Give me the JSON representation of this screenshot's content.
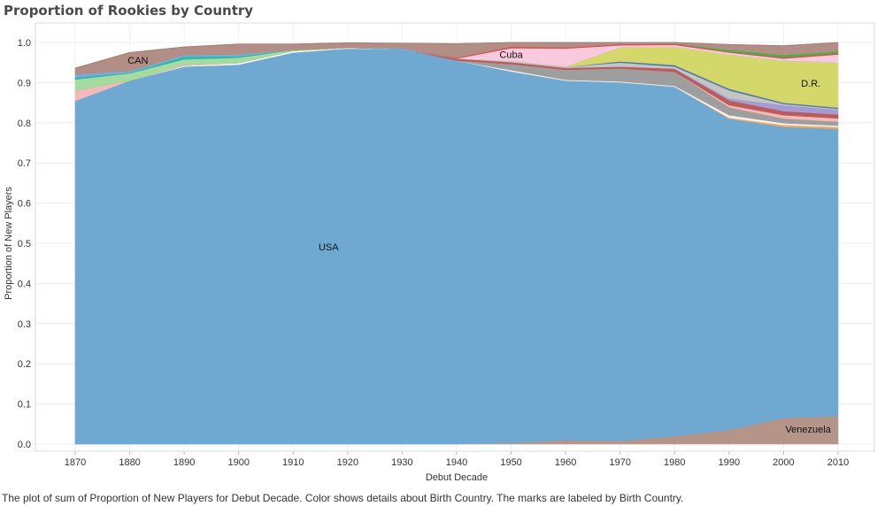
{
  "caption": "The plot of sum of Proportion of New Players for Debut Decade.  Color shows details about Birth Country.  The marks are labeled by Birth Country.",
  "chart_data": {
    "type": "area",
    "stacked": true,
    "title": "Proportion of Rookies by Country",
    "xlabel": "Debut Decade",
    "ylabel": "Proportion of New Players",
    "x": [
      1870,
      1880,
      1890,
      1900,
      1910,
      1920,
      1930,
      1940,
      1950,
      1960,
      1970,
      1980,
      1990,
      2000,
      2010
    ],
    "x_ticks": [
      "1870",
      "1880",
      "1890",
      "1900",
      "1910",
      "1920",
      "1930",
      "1940",
      "1950",
      "1960",
      "1970",
      "1980",
      "1990",
      "2000",
      "2010"
    ],
    "y_ticks": [
      "0.0",
      "0.1",
      "0.2",
      "0.3",
      "0.4",
      "0.5",
      "0.6",
      "0.7",
      "0.8",
      "0.9",
      "1.0"
    ],
    "ylim": [
      0,
      1.0
    ],
    "grid": true,
    "series": [
      {
        "name": "Venezuela",
        "color": "#b5948a",
        "values": [
          0,
          0,
          0,
          0,
          0,
          0,
          0,
          0,
          0.003,
          0.01,
          0.008,
          0.02,
          0.035,
          0.065,
          0.07
        ]
      },
      {
        "name": "USA",
        "color": "#6fa8d0",
        "values": [
          0.855,
          0.905,
          0.94,
          0.945,
          0.975,
          0.985,
          0.983,
          0.955,
          0.925,
          0.895,
          0.893,
          0.87,
          0.775,
          0.725,
          0.715
        ]
      },
      {
        "color": "#f5a962",
        "values": [
          0,
          0,
          0,
          0,
          0,
          0,
          0,
          0,
          0,
          0,
          0,
          0,
          0.003,
          0.005,
          0.005
        ]
      },
      {
        "color": "#f5f5f5",
        "values": [
          0,
          0,
          0.002,
          0.004,
          0.004,
          0.002,
          0,
          0,
          0.003,
          0.002,
          0.002,
          0.002,
          0.006,
          0.004,
          0.003
        ]
      },
      {
        "color": "#9e9e9e",
        "values": [
          0,
          0,
          0,
          0,
          0,
          0,
          0,
          0,
          0.015,
          0.025,
          0.032,
          0.035,
          0.02,
          0.012,
          0.01
        ]
      },
      {
        "color": "#f6b8b8",
        "values": [
          0.025,
          0,
          0.003,
          0,
          0,
          0,
          0,
          0,
          0,
          0,
          0,
          0,
          0.005,
          0.008,
          0.008
        ]
      },
      {
        "color": "#b85c5c",
        "values": [
          0,
          0,
          0,
          0,
          0,
          0,
          0,
          0.005,
          0.005,
          0.005,
          0.005,
          0.008,
          0.012,
          0.01,
          0.01
        ]
      },
      {
        "color": "#a79bd3",
        "values": [
          0,
          0,
          0,
          0,
          0,
          0,
          0,
          0,
          0,
          0,
          0,
          0,
          0.005,
          0.015,
          0.012
        ]
      },
      {
        "color": "#c4c4c4",
        "values": [
          0,
          0,
          0,
          0,
          0,
          0,
          0,
          0,
          0.003,
          0.002,
          0.01,
          0.005,
          0.02,
          0.003,
          0.002
        ]
      },
      {
        "color": "#4e79a7",
        "values": [
          0,
          0,
          0,
          0,
          0,
          0,
          0,
          0,
          0,
          0,
          0.003,
          0.004,
          0.004,
          0.003,
          0.003
        ]
      },
      {
        "name": "D.R.",
        "color": "#d4d86b",
        "values": [
          0,
          0,
          0,
          0,
          0,
          0,
          0,
          0,
          0,
          0.001,
          0.035,
          0.045,
          0.085,
          0.105,
          0.112
        ]
      },
      {
        "color": "#a6dba0",
        "values": [
          0.028,
          0.018,
          0.013,
          0.013,
          0.002,
          0,
          0,
          0,
          0,
          0,
          0,
          0,
          0,
          0,
          0
        ]
      },
      {
        "color": "#2eb8b0",
        "values": [
          0.005,
          0.002,
          0.007,
          0.004,
          0,
          0,
          0,
          0,
          0,
          0,
          0,
          0,
          0,
          0,
          0
        ]
      },
      {
        "color": "#7fa9d8",
        "values": [
          0.008,
          0.005,
          0.004,
          0.005,
          0,
          0,
          0.003,
          0,
          0,
          0,
          0,
          0,
          0,
          0,
          0
        ]
      },
      {
        "name": "Cuba",
        "color": "#f9c9dd",
        "values": [
          0,
          0,
          0,
          0,
          0,
          0,
          0,
          0,
          0.032,
          0.045,
          0.005,
          0.005,
          0.005,
          0.005,
          0.02
        ]
      },
      {
        "color": "#e04c4c",
        "values": [
          0,
          0,
          0,
          0,
          0,
          0,
          0,
          0.002,
          0.004,
          0.003,
          0.003,
          0.003,
          0.002,
          0.003,
          0.003
        ]
      },
      {
        "color": "#4daf4a",
        "values": [
          0,
          0,
          0,
          0,
          0,
          0,
          0,
          0,
          0,
          0,
          0,
          0,
          0.005,
          0.006,
          0.005
        ]
      },
      {
        "name": "CAN",
        "color": "#b28e86",
        "values": [
          0.015,
          0.045,
          0.02,
          0.025,
          0.015,
          0.012,
          0.012,
          0.035,
          0.01,
          0.012,
          0.004,
          0.003,
          0.013,
          0.023,
          0.022
        ]
      }
    ]
  }
}
